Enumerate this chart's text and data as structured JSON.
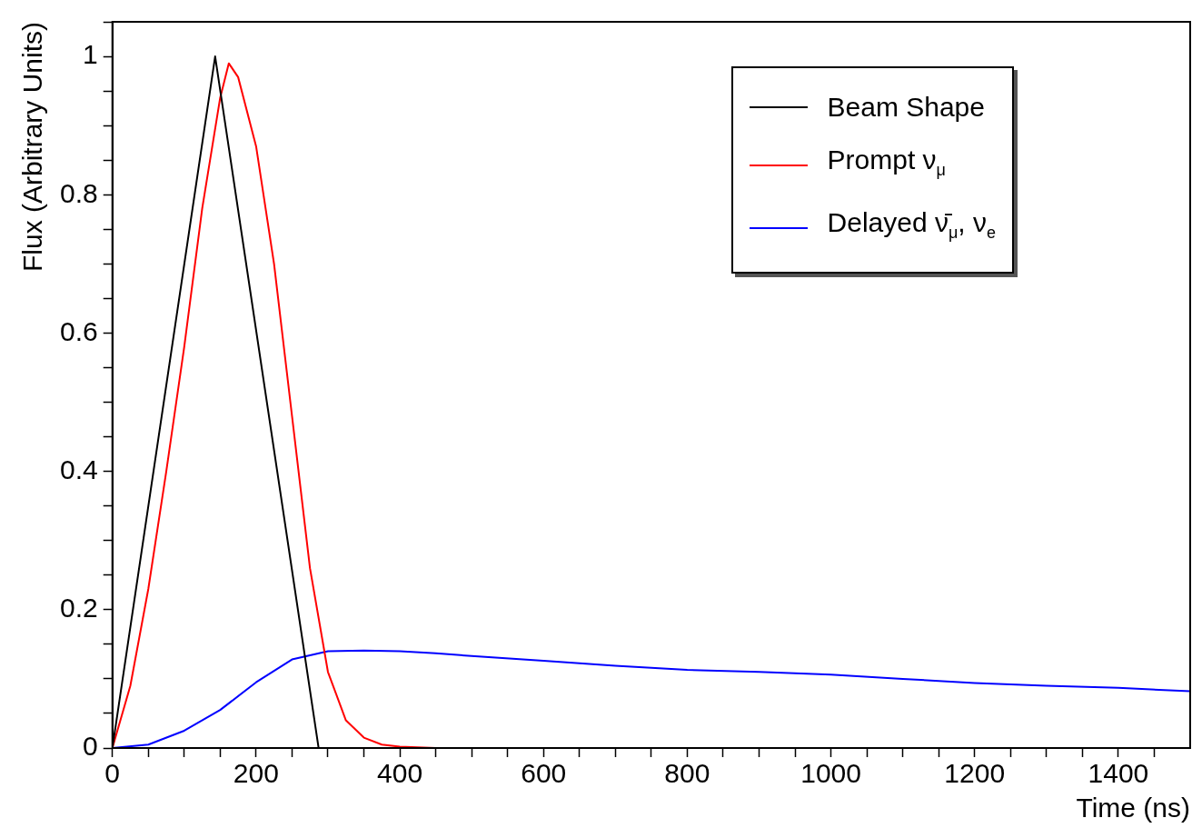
{
  "chart_data": {
    "type": "line",
    "xlabel": "Time (ns)",
    "ylabel": "Flux (Arbitrary Units)",
    "xlim": [
      0,
      1500
    ],
    "ylim": [
      0,
      1.05
    ],
    "xticks": [
      0,
      {
        "value": 50,
        "label": null
      },
      {
        "value": 100,
        "label": null
      },
      {
        "value": 150,
        "label": null
      },
      200,
      {
        "value": 250,
        "label": null
      },
      {
        "value": 300,
        "label": null
      },
      {
        "value": 350,
        "label": null
      },
      400,
      {
        "value": 450,
        "label": null
      },
      {
        "value": 500,
        "label": null
      },
      {
        "value": 550,
        "label": null
      },
      600,
      {
        "value": 650,
        "label": null
      },
      {
        "value": 700,
        "label": null
      },
      {
        "value": 750,
        "label": null
      },
      800,
      {
        "value": 850,
        "label": null
      },
      {
        "value": 900,
        "label": null
      },
      {
        "value": 950,
        "label": null
      },
      1000,
      {
        "value": 1050,
        "label": null
      },
      {
        "value": 1100,
        "label": null
      },
      {
        "value": 1150,
        "label": null
      },
      1200,
      {
        "value": 1250,
        "label": null
      },
      {
        "value": 1300,
        "label": null
      },
      {
        "value": 1350,
        "label": null
      },
      1400,
      {
        "value": 1450,
        "label": null
      }
    ],
    "yticks": [
      0,
      {
        "value": 0.05,
        "label": null
      },
      {
        "value": 0.1,
        "label": null
      },
      {
        "value": 0.15,
        "label": null
      },
      0.2,
      {
        "value": 0.25,
        "label": null
      },
      {
        "value": 0.3,
        "label": null
      },
      {
        "value": 0.35,
        "label": null
      },
      0.4,
      {
        "value": 0.45,
        "label": null
      },
      {
        "value": 0.5,
        "label": null
      },
      {
        "value": 0.55,
        "label": null
      },
      0.6,
      {
        "value": 0.65,
        "label": null
      },
      {
        "value": 0.7,
        "label": null
      },
      {
        "value": 0.75,
        "label": null
      },
      0.8,
      {
        "value": 0.85,
        "label": null
      },
      {
        "value": 0.9,
        "label": null
      },
      {
        "value": 0.95,
        "label": null
      },
      1,
      {
        "value": 1.05,
        "label": null
      }
    ],
    "grid": false,
    "legend": "top right",
    "marker": "none",
    "line_style": "solid",
    "series": [
      {
        "name": "Beam Shape",
        "color": "#000000",
        "x": [
          0,
          143,
          287,
          1500
        ],
        "values": [
          0,
          1,
          0,
          0
        ]
      },
      {
        "name": "Prompt ν$_{μ}$",
        "color": "#ff0000",
        "x": [
          0,
          25,
          50,
          75,
          100,
          125,
          150,
          162,
          175,
          200,
          225,
          250,
          275,
          300,
          325,
          350,
          375,
          400,
          450,
          1500
        ],
        "values": [
          0,
          0.09,
          0.23,
          0.4,
          0.58,
          0.78,
          0.94,
          0.99,
          0.97,
          0.87,
          0.7,
          0.48,
          0.26,
          0.11,
          0.04,
          0.015,
          0.005,
          0.002,
          0,
          0
        ]
      },
      {
        "name": "Delayed ν̄$_{μ}$, ν$_{e}$",
        "color": "#0000ff",
        "x": [
          0,
          50,
          100,
          150,
          200,
          250,
          300,
          350,
          400,
          450,
          500,
          600,
          700,
          800,
          900,
          1000,
          1100,
          1200,
          1300,
          1400,
          1500
        ],
        "values": [
          0,
          0.005,
          0.025,
          0.055,
          0.095,
          0.128,
          0.14,
          0.141,
          0.14,
          0.137,
          0.133,
          0.126,
          0.119,
          0.113,
          0.11,
          0.106,
          0.1,
          0.094,
          0.09,
          0.087,
          0.082
        ]
      }
    ]
  }
}
